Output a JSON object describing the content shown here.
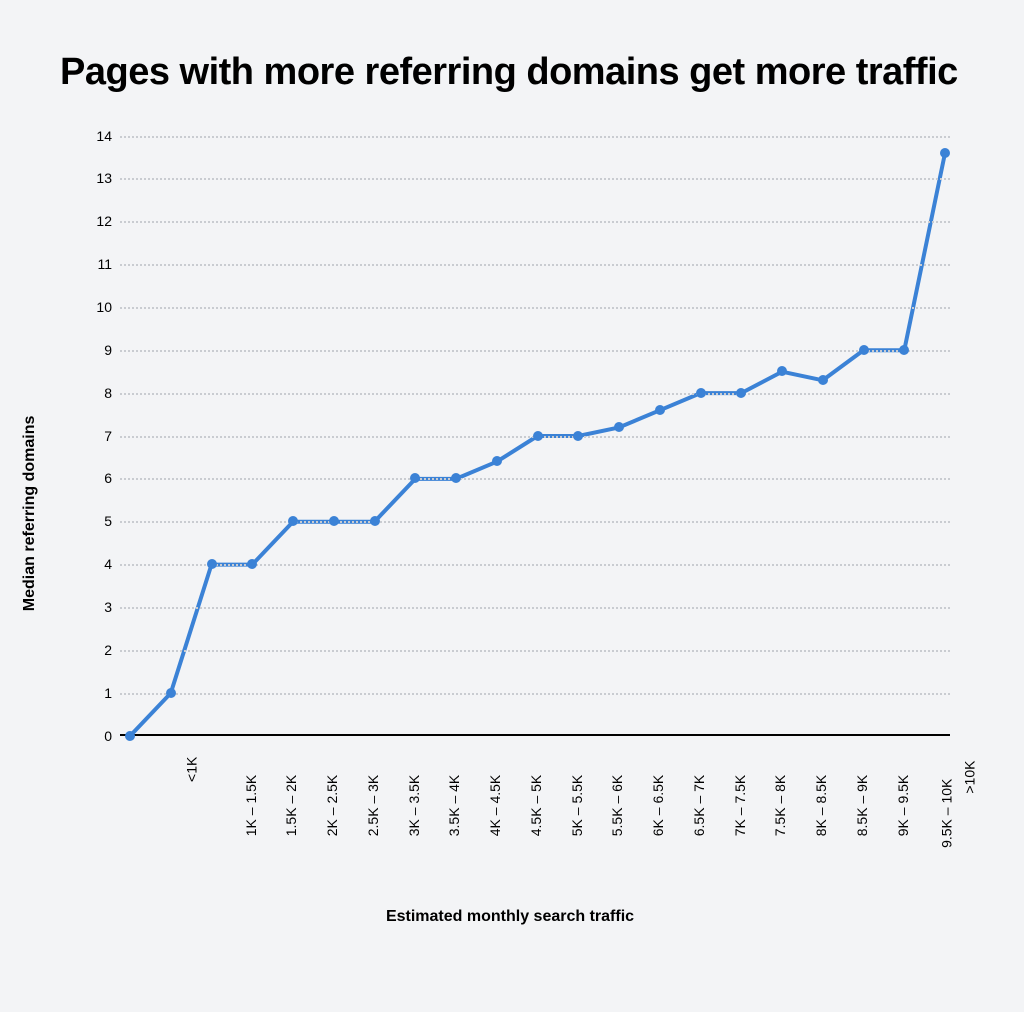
{
  "title": "Pages with more referring domains get more traffic",
  "xlabel": "Estimated monthly search traffic",
  "ylabel": "Median referring domains",
  "chart": {
    "type": "line",
    "background_color": "#f3f4f6",
    "line_color": "#3b82d6",
    "line_width": 4,
    "marker_color": "#3b82d6",
    "marker_radius": 5,
    "grid_color": "#c9ccd1",
    "grid_style": "dotted",
    "axis_color": "#000000",
    "ylim": [
      0,
      14
    ],
    "ytick_step": 1,
    "title_fontsize": 38,
    "label_fontsize": 16,
    "tick_fontsize": 14,
    "categories": [
      "",
      "<1K",
      "1K – 1.5K",
      "1.5K – 2K",
      "2K – 2.5K",
      "2.5K – 3K",
      "3K – 3.5K",
      "3.5K – 4K",
      "4K – 4.5K",
      "4.5K – 5K",
      "5K – 5.5K",
      "5.5K – 6K",
      "6K – 6.5K",
      "6.5K – 7K",
      "7K – 7.5K",
      "7.5K – 8K",
      "8K – 8.5K",
      "8.5K – 9K",
      "9K – 9.5K",
      "9.5K – 10K",
      ">10K"
    ],
    "values": [
      0,
      1,
      4,
      4,
      5,
      5,
      5,
      6,
      6,
      6.4,
      7.0,
      7.0,
      7.2,
      7.6,
      8,
      8,
      8.5,
      8.3,
      9,
      9,
      13.6
    ]
  }
}
